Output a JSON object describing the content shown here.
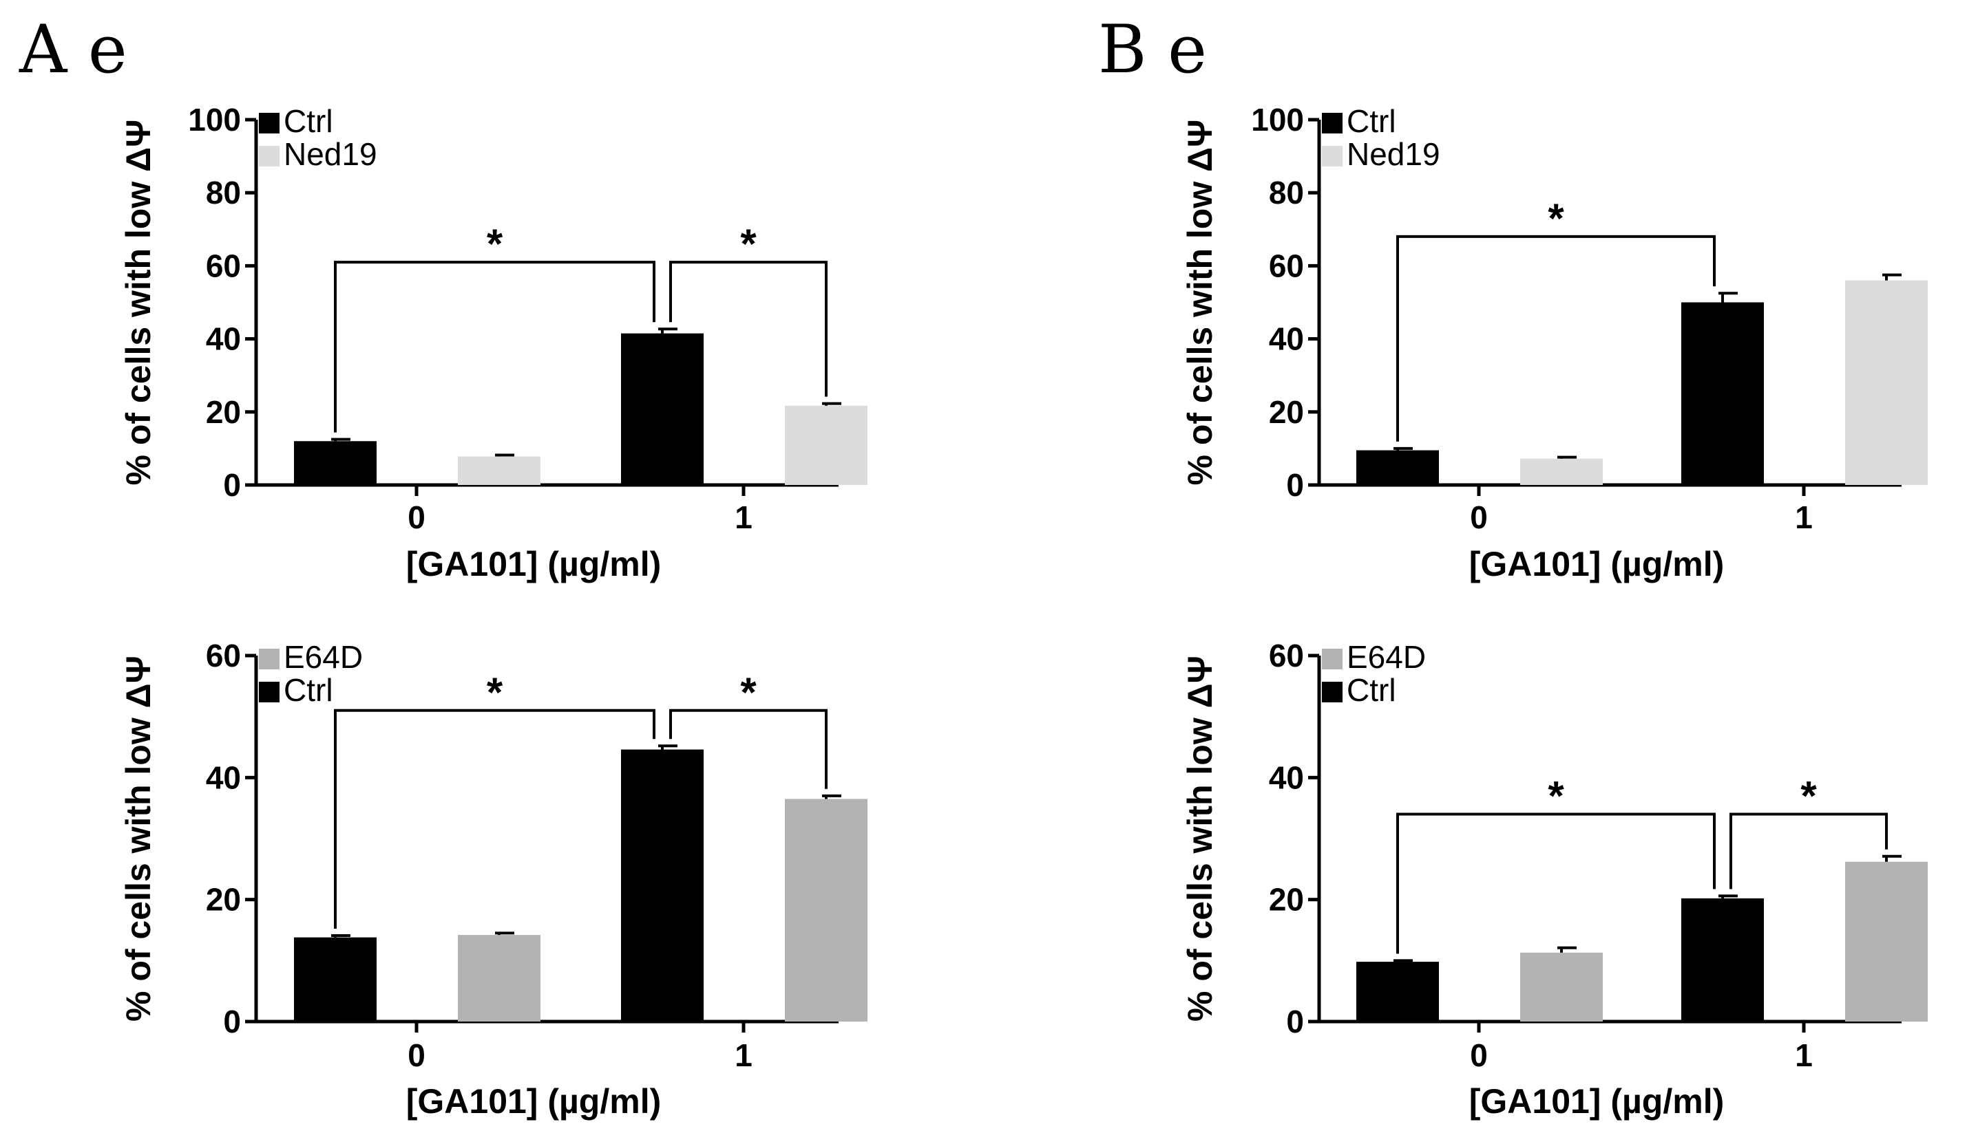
{
  "figure": {
    "panel_labels": [
      "A e",
      "B e"
    ]
  },
  "chart_data": [
    {
      "id": "A-top",
      "type": "bar",
      "title": "",
      "xlabel": "[GA101] (µg/ml)",
      "ylabel": "% of cells with low ΔΨ",
      "categories": [
        "0",
        "1"
      ],
      "ylim": [
        0,
        100
      ],
      "yticks": [
        0,
        20,
        40,
        60,
        80,
        100
      ],
      "legend_position": "top-left",
      "series": [
        {
          "name": "Ctrl",
          "color": "#000000",
          "values": [
            12,
            41.5
          ],
          "errors": [
            0.5,
            1.2
          ]
        },
        {
          "name": "Ned19",
          "color": "#dcdcdc",
          "values": [
            7.8,
            21.7
          ],
          "errors": [
            0.4,
            0.6
          ]
        }
      ],
      "legend_order": [
        "Ctrl",
        "Ned19"
      ],
      "significance": [
        {
          "from": [
            0,
            0
          ],
          "to": [
            1,
            0
          ],
          "label": "*"
        },
        {
          "from": [
            1,
            0
          ],
          "to": [
            1,
            1
          ],
          "label": "*"
        }
      ]
    },
    {
      "id": "B-top",
      "type": "bar",
      "title": "",
      "xlabel": "[GA101] (µg/ml)",
      "ylabel": "% of cells with low ΔΨ",
      "categories": [
        "0",
        "1"
      ],
      "ylim": [
        0,
        100
      ],
      "yticks": [
        0,
        20,
        40,
        60,
        80,
        100
      ],
      "legend_position": "top-left",
      "series": [
        {
          "name": "Ctrl",
          "color": "#000000",
          "values": [
            9.5,
            50
          ],
          "errors": [
            0.5,
            2.5
          ]
        },
        {
          "name": "Ned19",
          "color": "#dcdcdc",
          "values": [
            7.2,
            56
          ],
          "errors": [
            0.4,
            1.5
          ]
        }
      ],
      "legend_order": [
        "Ctrl",
        "Ned19"
      ],
      "significance": [
        {
          "from": [
            0,
            0
          ],
          "to": [
            1,
            0
          ],
          "label": "*"
        }
      ]
    },
    {
      "id": "A-bottom",
      "type": "bar",
      "title": "",
      "xlabel": "[GA101] (µg/ml)",
      "ylabel": "% of cells with low ΔΨ",
      "categories": [
        "0",
        "1"
      ],
      "ylim": [
        0,
        60
      ],
      "yticks": [
        0,
        20,
        40,
        60
      ],
      "legend_position": "top-left",
      "series": [
        {
          "name": "Ctrl",
          "color": "#000000",
          "values": [
            13.8,
            44.6
          ],
          "errors": [
            0.3,
            0.6
          ]
        },
        {
          "name": "E64D",
          "color": "#b3b3b6",
          "values": [
            14.2,
            36.5
          ],
          "errors": [
            0.3,
            0.5
          ]
        }
      ],
      "legend_order": [
        "E64D",
        "Ctrl"
      ],
      "significance": [
        {
          "from": [
            0,
            0
          ],
          "to": [
            1,
            0
          ],
          "label": "*"
        },
        {
          "from": [
            1,
            0
          ],
          "to": [
            1,
            1
          ],
          "label": "*"
        }
      ]
    },
    {
      "id": "B-bottom",
      "type": "bar",
      "title": "",
      "xlabel": "[GA101] (µg/ml)",
      "ylabel": "% of cells with low ΔΨ",
      "categories": [
        "0",
        "1"
      ],
      "ylim": [
        0,
        60
      ],
      "yticks": [
        0,
        20,
        40,
        60
      ],
      "legend_position": "top-left",
      "series": [
        {
          "name": "Ctrl",
          "color": "#000000",
          "values": [
            9.8,
            20.2
          ],
          "errors": [
            0.2,
            0.4
          ]
        },
        {
          "name": "E64D",
          "color": "#b3b3b6",
          "values": [
            11.3,
            26.2
          ],
          "errors": [
            0.8,
            0.9
          ]
        }
      ],
      "legend_order": [
        "E64D",
        "Ctrl"
      ],
      "significance": [
        {
          "from": [
            0,
            0
          ],
          "to": [
            1,
            0
          ],
          "label": "*"
        },
        {
          "from": [
            1,
            0
          ],
          "to": [
            1,
            1
          ],
          "label": "*"
        }
      ]
    }
  ]
}
